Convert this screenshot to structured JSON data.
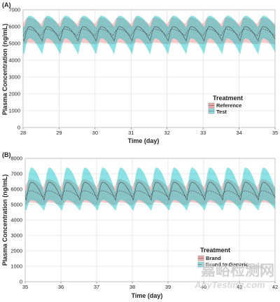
{
  "chart_data": [
    {
      "type": "line",
      "panel_label": "(A)",
      "xlabel": "Time (day)",
      "ylabel": "Plasma Concentration (ng/mL)",
      "xlim": [
        28,
        35
      ],
      "ylim": [
        0,
        7000
      ],
      "xticks": [
        "28",
        "29",
        "30",
        "31",
        "32",
        "33",
        "34",
        "35"
      ],
      "yticks": [
        "0",
        "1000",
        "2000",
        "3000",
        "4000",
        "5000",
        "6000",
        "7000"
      ],
      "grid": true,
      "legend": {
        "title": "Treatment",
        "position": "right",
        "entries": [
          "Reference",
          "Test"
        ]
      },
      "dosing_interval_day": 0.5,
      "series": [
        {
          "name": "Reference",
          "color": "#f08080",
          "mean": {
            "peak": 5850,
            "trough": 5450
          },
          "band": {
            "upper_peak": 6550,
            "upper_trough": 6150,
            "lower_peak": 5050,
            "lower_trough": 4950
          }
        },
        {
          "name": "Test",
          "color": "#00bfc4",
          "mean": {
            "peak": 6000,
            "trough": 5150
          },
          "band": {
            "upper_peak": 6650,
            "upper_trough": 5950,
            "lower_peak": 5300,
            "lower_trough": 4350
          }
        }
      ]
    },
    {
      "type": "line",
      "panel_label": "(B)",
      "xlabel": "Time (day)",
      "ylabel": "Plasma Concentration (ng/mL)",
      "xlim": [
        35,
        42
      ],
      "ylim": [
        0,
        8000
      ],
      "xticks": [
        "35",
        "36",
        "37",
        "38",
        "39",
        "40",
        "41",
        "42"
      ],
      "yticks": [
        "0",
        "1000",
        "2000",
        "3000",
        "4000",
        "5000",
        "6000",
        "7000",
        "8000"
      ],
      "grid": true,
      "legend": {
        "title": "Treatment",
        "position": "bottom-right",
        "entries": [
          "Brand",
          "Brand to Generic"
        ]
      },
      "dosing_interval_day": 0.5,
      "series": [
        {
          "name": "Brand",
          "color": "#f08080",
          "mean": {
            "peak": 5900,
            "trough": 5500
          },
          "band": {
            "upper_peak": 6650,
            "upper_trough": 6150,
            "lower_peak": 5150,
            "lower_trough": 4950
          }
        },
        {
          "name": "Brand to Generic",
          "color": "#00bfc4",
          "mean": {
            "peak": 6450,
            "trough": 5300
          },
          "band": {
            "upper_peak": 7400,
            "upper_trough": 5800,
            "lower_peak": 5300,
            "lower_trough": 4600
          }
        }
      ]
    }
  ],
  "watermark": {
    "primary": "嘉峪检测网",
    "secondary": "AnyTesting.com",
    "tiny": "嘉峪检测网"
  }
}
